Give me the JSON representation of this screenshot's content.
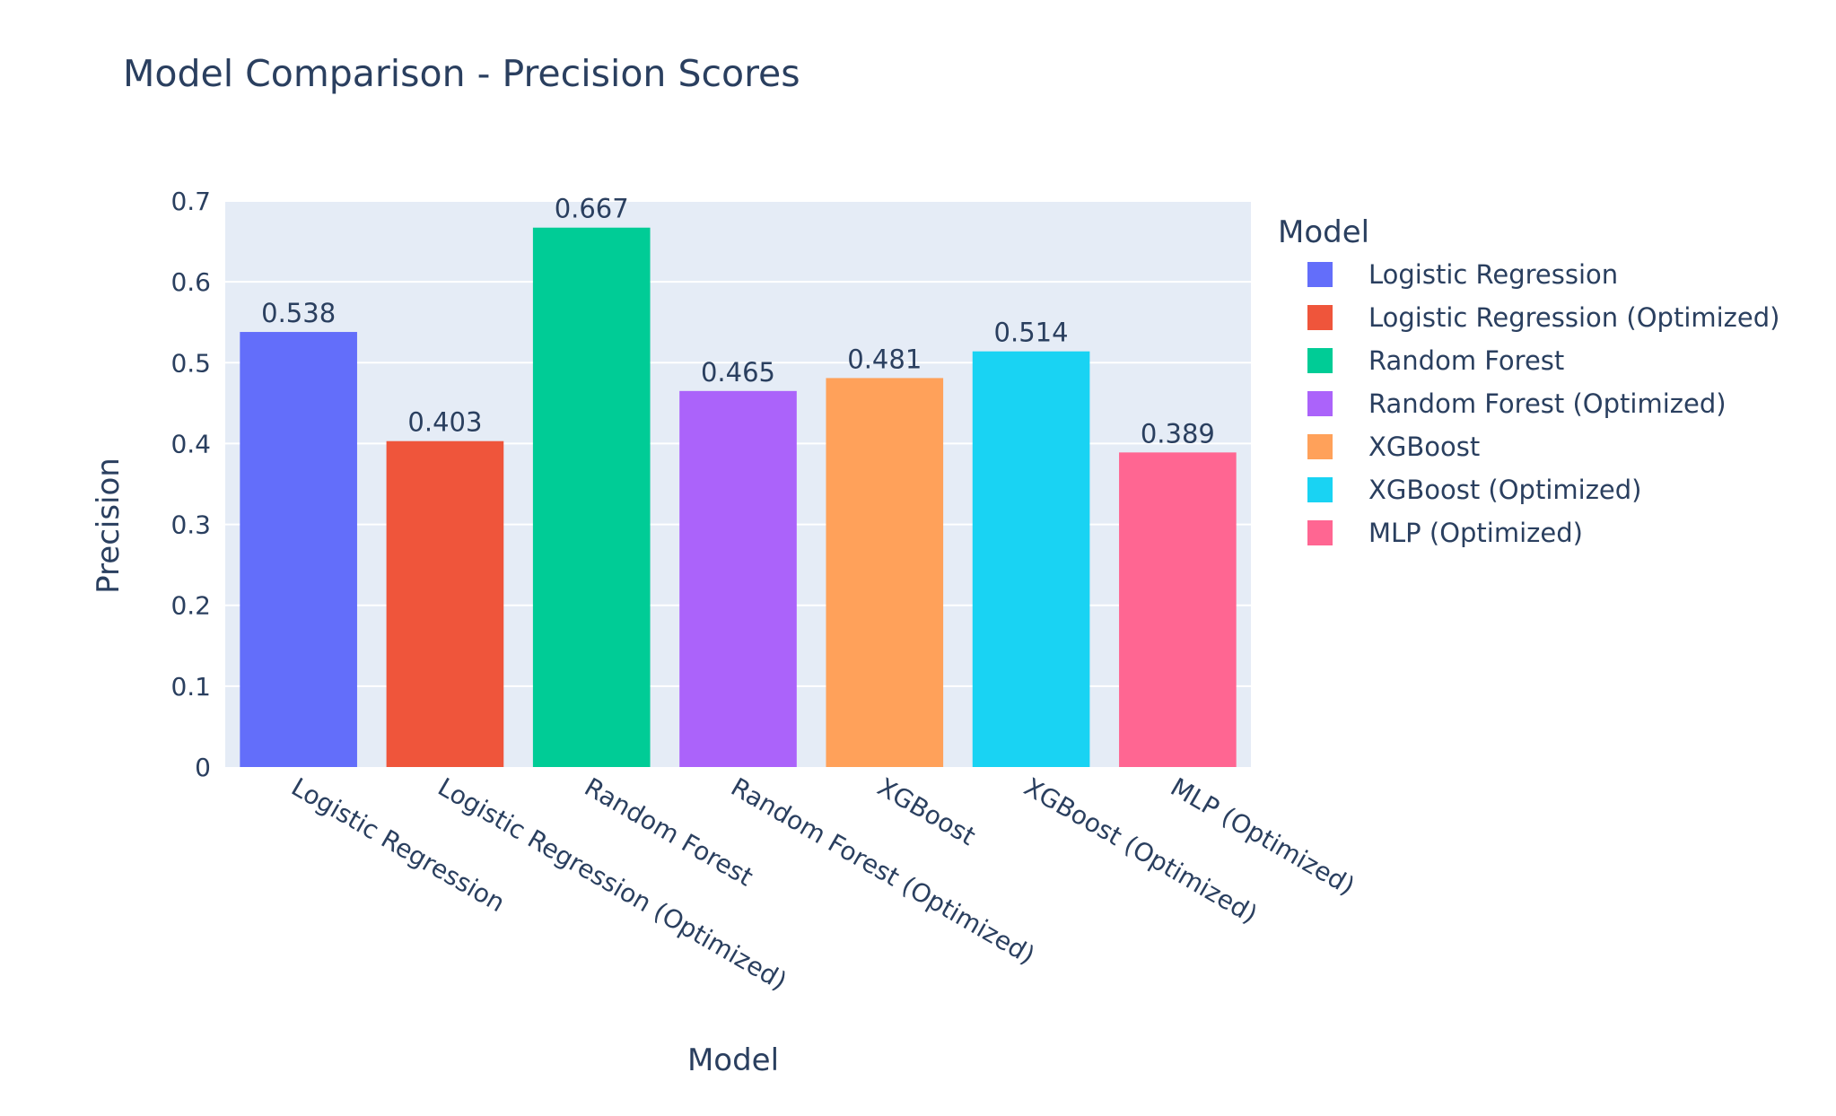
{
  "chart_data": {
    "type": "bar",
    "title": "Model Comparison - Precision Scores",
    "xlabel": "Model",
    "ylabel": "Precision",
    "ylim": [
      0,
      0.7
    ],
    "yticks": [
      0,
      0.1,
      0.2,
      0.3,
      0.4,
      0.5,
      0.6,
      0.7
    ],
    "ytick_labels": [
      "0",
      "0.1",
      "0.2",
      "0.3",
      "0.4",
      "0.5",
      "0.6",
      "0.7"
    ],
    "grid": true,
    "legend_title": "Model",
    "legend_position": "right",
    "categories": [
      "Logistic Regression",
      "Logistic Regression (Optimized)",
      "Random Forest",
      "Random Forest (Optimized)",
      "XGBoost",
      "XGBoost (Optimized)",
      "MLP (Optimized)"
    ],
    "values": [
      0.538,
      0.403,
      0.667,
      0.465,
      0.481,
      0.514,
      0.389
    ],
    "labels": [
      "0.538",
      "0.403",
      "0.667",
      "0.465",
      "0.481",
      "0.514",
      "0.389"
    ],
    "colors": [
      "#636efa",
      "#EF553B",
      "#00cc96",
      "#ab63fa",
      "#FFA15A",
      "#19d3f3",
      "#FF6692"
    ]
  }
}
